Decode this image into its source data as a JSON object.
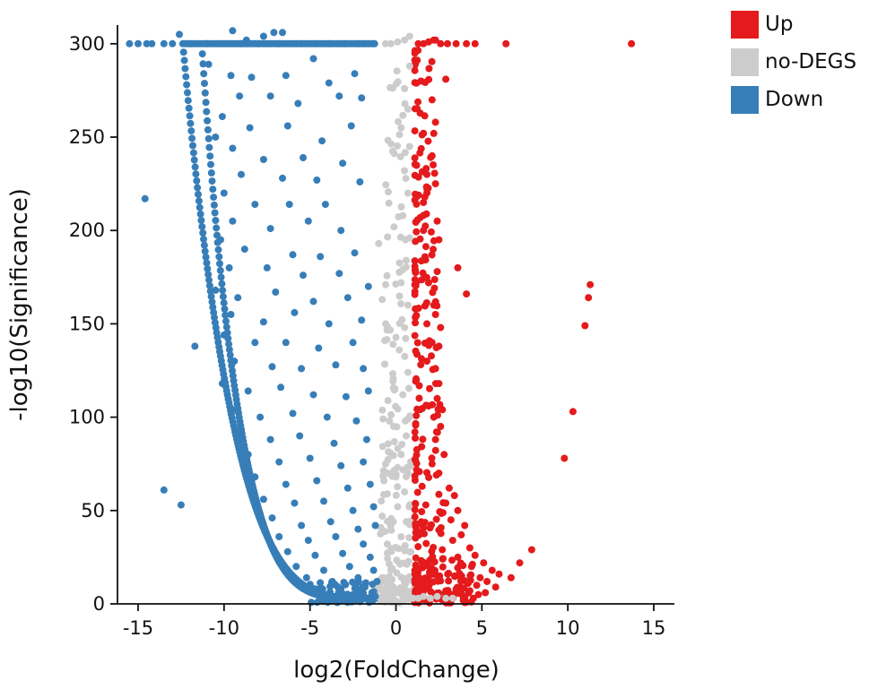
{
  "chart_data": {
    "type": "scatter",
    "title": "",
    "xlabel": "log2(FoldChange)",
    "ylabel": "-log10(Significance)",
    "xlim": [
      -16.2,
      16.2
    ],
    "ylim": [
      0,
      310
    ],
    "xticks": [
      -15,
      -10,
      -5,
      0,
      5,
      10,
      15
    ],
    "yticks": [
      0,
      50,
      100,
      150,
      200,
      250,
      300
    ],
    "grid": false,
    "legend_position": "top-right",
    "series": [
      {
        "name": "Up",
        "color": "#e41a1c",
        "points": [
          [
            1.3,
            300
          ],
          [
            1.6,
            300
          ],
          [
            1.9,
            301
          ],
          [
            2.2,
            302
          ],
          [
            2.6,
            300
          ],
          [
            3.0,
            300
          ],
          [
            3.5,
            300
          ],
          [
            4.1,
            300
          ],
          [
            4.6,
            300
          ],
          [
            6.4,
            300
          ],
          [
            13.7,
            300
          ],
          [
            2.3,
            302
          ],
          [
            2.9,
            281
          ],
          [
            2.1,
            270
          ],
          [
            2.3,
            258
          ],
          [
            2.2,
            252
          ],
          [
            2.1,
            240
          ],
          [
            1.8,
            230
          ],
          [
            2.3,
            225
          ],
          [
            1.6,
            215
          ],
          [
            2.4,
            205
          ],
          [
            1.6,
            200
          ],
          [
            2.5,
            195
          ],
          [
            3.6,
            180
          ],
          [
            2.4,
            178
          ],
          [
            1.9,
            172
          ],
          [
            4.1,
            166
          ],
          [
            2.2,
            160
          ],
          [
            2.3,
            155
          ],
          [
            1.8,
            150
          ],
          [
            2.6,
            148
          ],
          [
            2.1,
            140
          ],
          [
            2.5,
            138
          ],
          [
            1.8,
            130
          ],
          [
            2.3,
            126
          ],
          [
            2.5,
            118
          ],
          [
            2.4,
            110
          ],
          [
            2.7,
            104
          ],
          [
            2.2,
            100
          ],
          [
            2.6,
            95
          ],
          [
            2.3,
            88
          ],
          [
            2.8,
            80
          ],
          [
            2.1,
            75
          ],
          [
            2.5,
            70
          ],
          [
            3.1,
            62
          ],
          [
            3.4,
            58
          ],
          [
            2.9,
            54
          ],
          [
            3.6,
            50
          ],
          [
            3.2,
            45
          ],
          [
            4.0,
            42
          ],
          [
            3.8,
            37
          ],
          [
            3.3,
            34
          ],
          [
            4.3,
            30
          ],
          [
            4.6,
            26
          ],
          [
            3.6,
            25
          ],
          [
            5.1,
            22
          ],
          [
            4.4,
            20
          ],
          [
            5.6,
            18
          ],
          [
            6.0,
            16
          ],
          [
            3.7,
            15
          ],
          [
            4.9,
            14
          ],
          [
            6.7,
            14
          ],
          [
            5.3,
            12
          ],
          [
            4.2,
            11
          ],
          [
            4.7,
            10
          ],
          [
            5.8,
            9
          ],
          [
            3.5,
            8
          ],
          [
            4.3,
            7
          ],
          [
            5.2,
            6
          ],
          [
            4.8,
            5
          ],
          [
            3.9,
            4
          ],
          [
            2.8,
            3
          ],
          [
            4.5,
            3
          ],
          [
            7.2,
            22
          ],
          [
            7.9,
            29
          ],
          [
            11.3,
            171
          ],
          [
            11.2,
            164
          ],
          [
            11.0,
            149
          ],
          [
            10.3,
            103
          ],
          [
            9.8,
            78
          ]
        ]
      },
      {
        "name": "no-DEGS",
        "color": "#cccccc",
        "points": [
          [
            -0.6,
            300
          ],
          [
            -0.3,
            300
          ],
          [
            0.1,
            301
          ],
          [
            0.5,
            302
          ],
          [
            0.8,
            304
          ],
          [
            0.8,
            288
          ],
          [
            0.5,
            276
          ],
          [
            0.7,
            265
          ],
          [
            0.3,
            255
          ],
          [
            0.8,
            245
          ],
          [
            0.5,
            232
          ],
          [
            0.7,
            220
          ],
          [
            0.4,
            208
          ],
          [
            0.8,
            196
          ],
          [
            -1.0,
            193
          ],
          [
            0.6,
            184
          ],
          [
            0.3,
            172
          ],
          [
            -0.6,
            171
          ],
          [
            -0.8,
            163
          ],
          [
            0.7,
            160
          ],
          [
            -0.6,
            150
          ],
          [
            0.5,
            148
          ],
          [
            0.2,
            136
          ],
          [
            0.7,
            124
          ],
          [
            0.4,
            112
          ],
          [
            0.8,
            100
          ],
          [
            0.6,
            90
          ],
          [
            0.3,
            80
          ],
          [
            0.7,
            70
          ],
          [
            -0.7,
            66
          ],
          [
            0.5,
            60
          ],
          [
            0.1,
            52
          ],
          [
            -0.8,
            47
          ],
          [
            0.6,
            44
          ],
          [
            0.3,
            36
          ],
          [
            -0.5,
            32
          ],
          [
            0.8,
            28
          ],
          [
            0.2,
            22
          ],
          [
            -0.3,
            18
          ],
          [
            -0.8,
            14
          ],
          [
            0.6,
            12
          ],
          [
            -0.6,
            8
          ],
          [
            0.1,
            6
          ],
          [
            0.7,
            5
          ],
          [
            -0.2,
            4
          ],
          [
            0.4,
            3
          ],
          [
            -0.9,
            3
          ],
          [
            1.0,
            3
          ],
          [
            1.3,
            3
          ],
          [
            1.6,
            4
          ],
          [
            2.0,
            3
          ],
          [
            2.4,
            4
          ],
          [
            2.9,
            3
          ],
          [
            3.3,
            3
          ],
          [
            -1.1,
            4
          ]
        ]
      },
      {
        "name": "Down",
        "color": "#377eb8",
        "points": [
          [
            -16.0,
            300
          ],
          [
            -15.5,
            300
          ],
          [
            -15.0,
            300
          ],
          [
            -14.5,
            300
          ],
          [
            -14.2,
            300
          ],
          [
            -13.5,
            300
          ],
          [
            -13.0,
            300
          ],
          [
            -12.6,
            305
          ],
          [
            -12.0,
            300
          ],
          [
            -11.0,
            300
          ],
          [
            -10.0,
            300
          ],
          [
            -9.5,
            307
          ],
          [
            -9.0,
            300
          ],
          [
            -8.0,
            300
          ],
          [
            -7.1,
            306
          ],
          [
            -6.6,
            306
          ],
          [
            -6.8,
            300
          ],
          [
            -5.5,
            300
          ],
          [
            -4.6,
            300
          ],
          [
            -3.9,
            300
          ],
          [
            -3.0,
            300
          ],
          [
            -2.2,
            300
          ],
          [
            -1.8,
            300
          ],
          [
            -1.3,
            300
          ],
          [
            -7.7,
            304
          ],
          [
            -8.7,
            302
          ],
          [
            -14.6,
            217
          ],
          [
            -13.5,
            61
          ],
          [
            -12.5,
            53
          ],
          [
            -11.7,
            138
          ],
          [
            -10.9,
            289
          ],
          [
            -9.6,
            283
          ],
          [
            -8.4,
            282
          ],
          [
            -6.4,
            283
          ],
          [
            -4.8,
            292
          ],
          [
            -3.9,
            279
          ],
          [
            -2.4,
            284
          ],
          [
            -2.0,
            271
          ],
          [
            -9.1,
            272
          ],
          [
            -7.3,
            272
          ],
          [
            -5.7,
            268
          ],
          [
            -3.3,
            272
          ],
          [
            -10.1,
            261
          ],
          [
            -8.5,
            255
          ],
          [
            -6.3,
            256
          ],
          [
            -4.3,
            248
          ],
          [
            -2.6,
            256
          ],
          [
            -10.5,
            250
          ],
          [
            -9.5,
            244
          ],
          [
            -7.7,
            238
          ],
          [
            -5.4,
            239
          ],
          [
            -3.1,
            236
          ],
          [
            -9.0,
            230
          ],
          [
            -6.6,
            228
          ],
          [
            -4.6,
            227
          ],
          [
            -2.1,
            226
          ],
          [
            -10.0,
            220
          ],
          [
            -8.2,
            214
          ],
          [
            -6.2,
            214
          ],
          [
            -4.1,
            214
          ],
          [
            -9.5,
            205
          ],
          [
            -7.3,
            201
          ],
          [
            -5.1,
            205
          ],
          [
            -3.2,
            200
          ],
          [
            -10.2,
            195
          ],
          [
            -8.8,
            190
          ],
          [
            -6.0,
            187
          ],
          [
            -4.4,
            186
          ],
          [
            -2.4,
            188
          ],
          [
            -9.7,
            180
          ],
          [
            -7.5,
            180
          ],
          [
            -5.4,
            176
          ],
          [
            -3.3,
            177
          ],
          [
            -10.5,
            168
          ],
          [
            -9.2,
            164
          ],
          [
            -7.0,
            167
          ],
          [
            -4.8,
            162
          ],
          [
            -2.8,
            164
          ],
          [
            -1.6,
            170
          ],
          [
            -9.6,
            155
          ],
          [
            -7.7,
            151
          ],
          [
            -5.9,
            156
          ],
          [
            -3.9,
            150
          ],
          [
            -2.0,
            152
          ],
          [
            -10.0,
            144
          ],
          [
            -8.2,
            140
          ],
          [
            -6.4,
            140
          ],
          [
            -4.5,
            137
          ],
          [
            -2.5,
            140
          ],
          [
            -9.4,
            130
          ],
          [
            -7.2,
            127
          ],
          [
            -5.5,
            126
          ],
          [
            -3.5,
            128
          ],
          [
            -1.9,
            126
          ],
          [
            -10.1,
            118
          ],
          [
            -8.6,
            114
          ],
          [
            -6.7,
            116
          ],
          [
            -4.8,
            112
          ],
          [
            -2.9,
            111
          ],
          [
            -1.6,
            114
          ],
          [
            -9.5,
            104
          ],
          [
            -7.9,
            100
          ],
          [
            -6.0,
            102
          ],
          [
            -4.0,
            100
          ],
          [
            -2.3,
            98
          ],
          [
            -9.0,
            92
          ],
          [
            -7.3,
            88
          ],
          [
            -5.6,
            90
          ],
          [
            -3.6,
            86
          ],
          [
            -1.7,
            88
          ],
          [
            -8.6,
            80
          ],
          [
            -6.8,
            76
          ],
          [
            -5.0,
            78
          ],
          [
            -3.2,
            74
          ],
          [
            -1.9,
            76
          ],
          [
            -8.2,
            68
          ],
          [
            -6.4,
            64
          ],
          [
            -4.6,
            66
          ],
          [
            -2.8,
            62
          ],
          [
            -1.5,
            64
          ],
          [
            -7.7,
            56
          ],
          [
            -5.9,
            54
          ],
          [
            -4.2,
            55
          ],
          [
            -2.5,
            50
          ],
          [
            -1.3,
            52
          ],
          [
            -7.2,
            46
          ],
          [
            -5.5,
            42
          ],
          [
            -3.8,
            44
          ],
          [
            -2.2,
            40
          ],
          [
            -1.2,
            42
          ],
          [
            -6.8,
            36
          ],
          [
            -5.1,
            34
          ],
          [
            -3.5,
            36
          ],
          [
            -1.9,
            32
          ],
          [
            -6.3,
            28
          ],
          [
            -4.7,
            26
          ],
          [
            -3.1,
            27
          ],
          [
            -1.5,
            25
          ],
          [
            -5.8,
            20
          ],
          [
            -4.2,
            18
          ],
          [
            -2.7,
            20
          ],
          [
            -1.3,
            18
          ],
          [
            -5.2,
            14
          ],
          [
            -3.7,
            12
          ],
          [
            -2.2,
            14
          ],
          [
            -1.1,
            12
          ],
          [
            -4.7,
            8
          ],
          [
            -3.2,
            8
          ],
          [
            -1.8,
            9
          ],
          [
            -4.0,
            5
          ],
          [
            -2.5,
            5
          ],
          [
            -1.4,
            6
          ],
          [
            -3.0,
            3
          ],
          [
            -1.7,
            3
          ],
          [
            -1.2,
            4
          ]
        ]
      }
    ],
    "boundary_curves": [
      {
        "series": "Down",
        "x_asymptote": -12.4,
        "shape": "steep-to-shallow"
      },
      {
        "series": "Down",
        "x_asymptote": -11.3,
        "shape": "steep-to-shallow"
      }
    ]
  }
}
